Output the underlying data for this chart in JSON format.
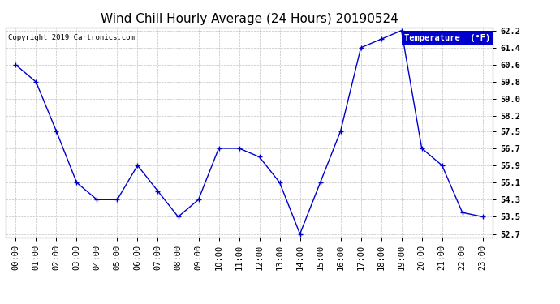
{
  "title": "Wind Chill Hourly Average (24 Hours) 20190524",
  "copyright_text": "Copyright 2019 Cartronics.com",
  "legend_label": "Temperature  (°F)",
  "hours": [
    0,
    1,
    2,
    3,
    4,
    5,
    6,
    7,
    8,
    9,
    10,
    11,
    12,
    13,
    14,
    15,
    16,
    17,
    18,
    19,
    20,
    21,
    22,
    23
  ],
  "temps": [
    60.6,
    59.8,
    57.5,
    55.1,
    54.3,
    54.3,
    55.9,
    54.7,
    53.5,
    54.3,
    56.7,
    56.7,
    56.3,
    55.1,
    52.7,
    55.1,
    57.5,
    61.4,
    61.8,
    62.2,
    56.7,
    55.9,
    53.7,
    53.5
  ],
  "line_color": "#0000cc",
  "marker_color": "#000033",
  "bg_color": "#ffffff",
  "grid_color": "#bbbbbb",
  "ylim_min": 52.7,
  "ylim_max": 62.2,
  "yticks": [
    52.7,
    53.5,
    54.3,
    55.1,
    55.9,
    56.7,
    57.5,
    58.2,
    59.0,
    59.8,
    60.6,
    61.4,
    62.2
  ],
  "title_fontsize": 11,
  "tick_fontsize": 7.5,
  "legend_bg": "#0000cc",
  "legend_fg": "#ffffff",
  "fig_width": 6.9,
  "fig_height": 3.75,
  "dpi": 100
}
